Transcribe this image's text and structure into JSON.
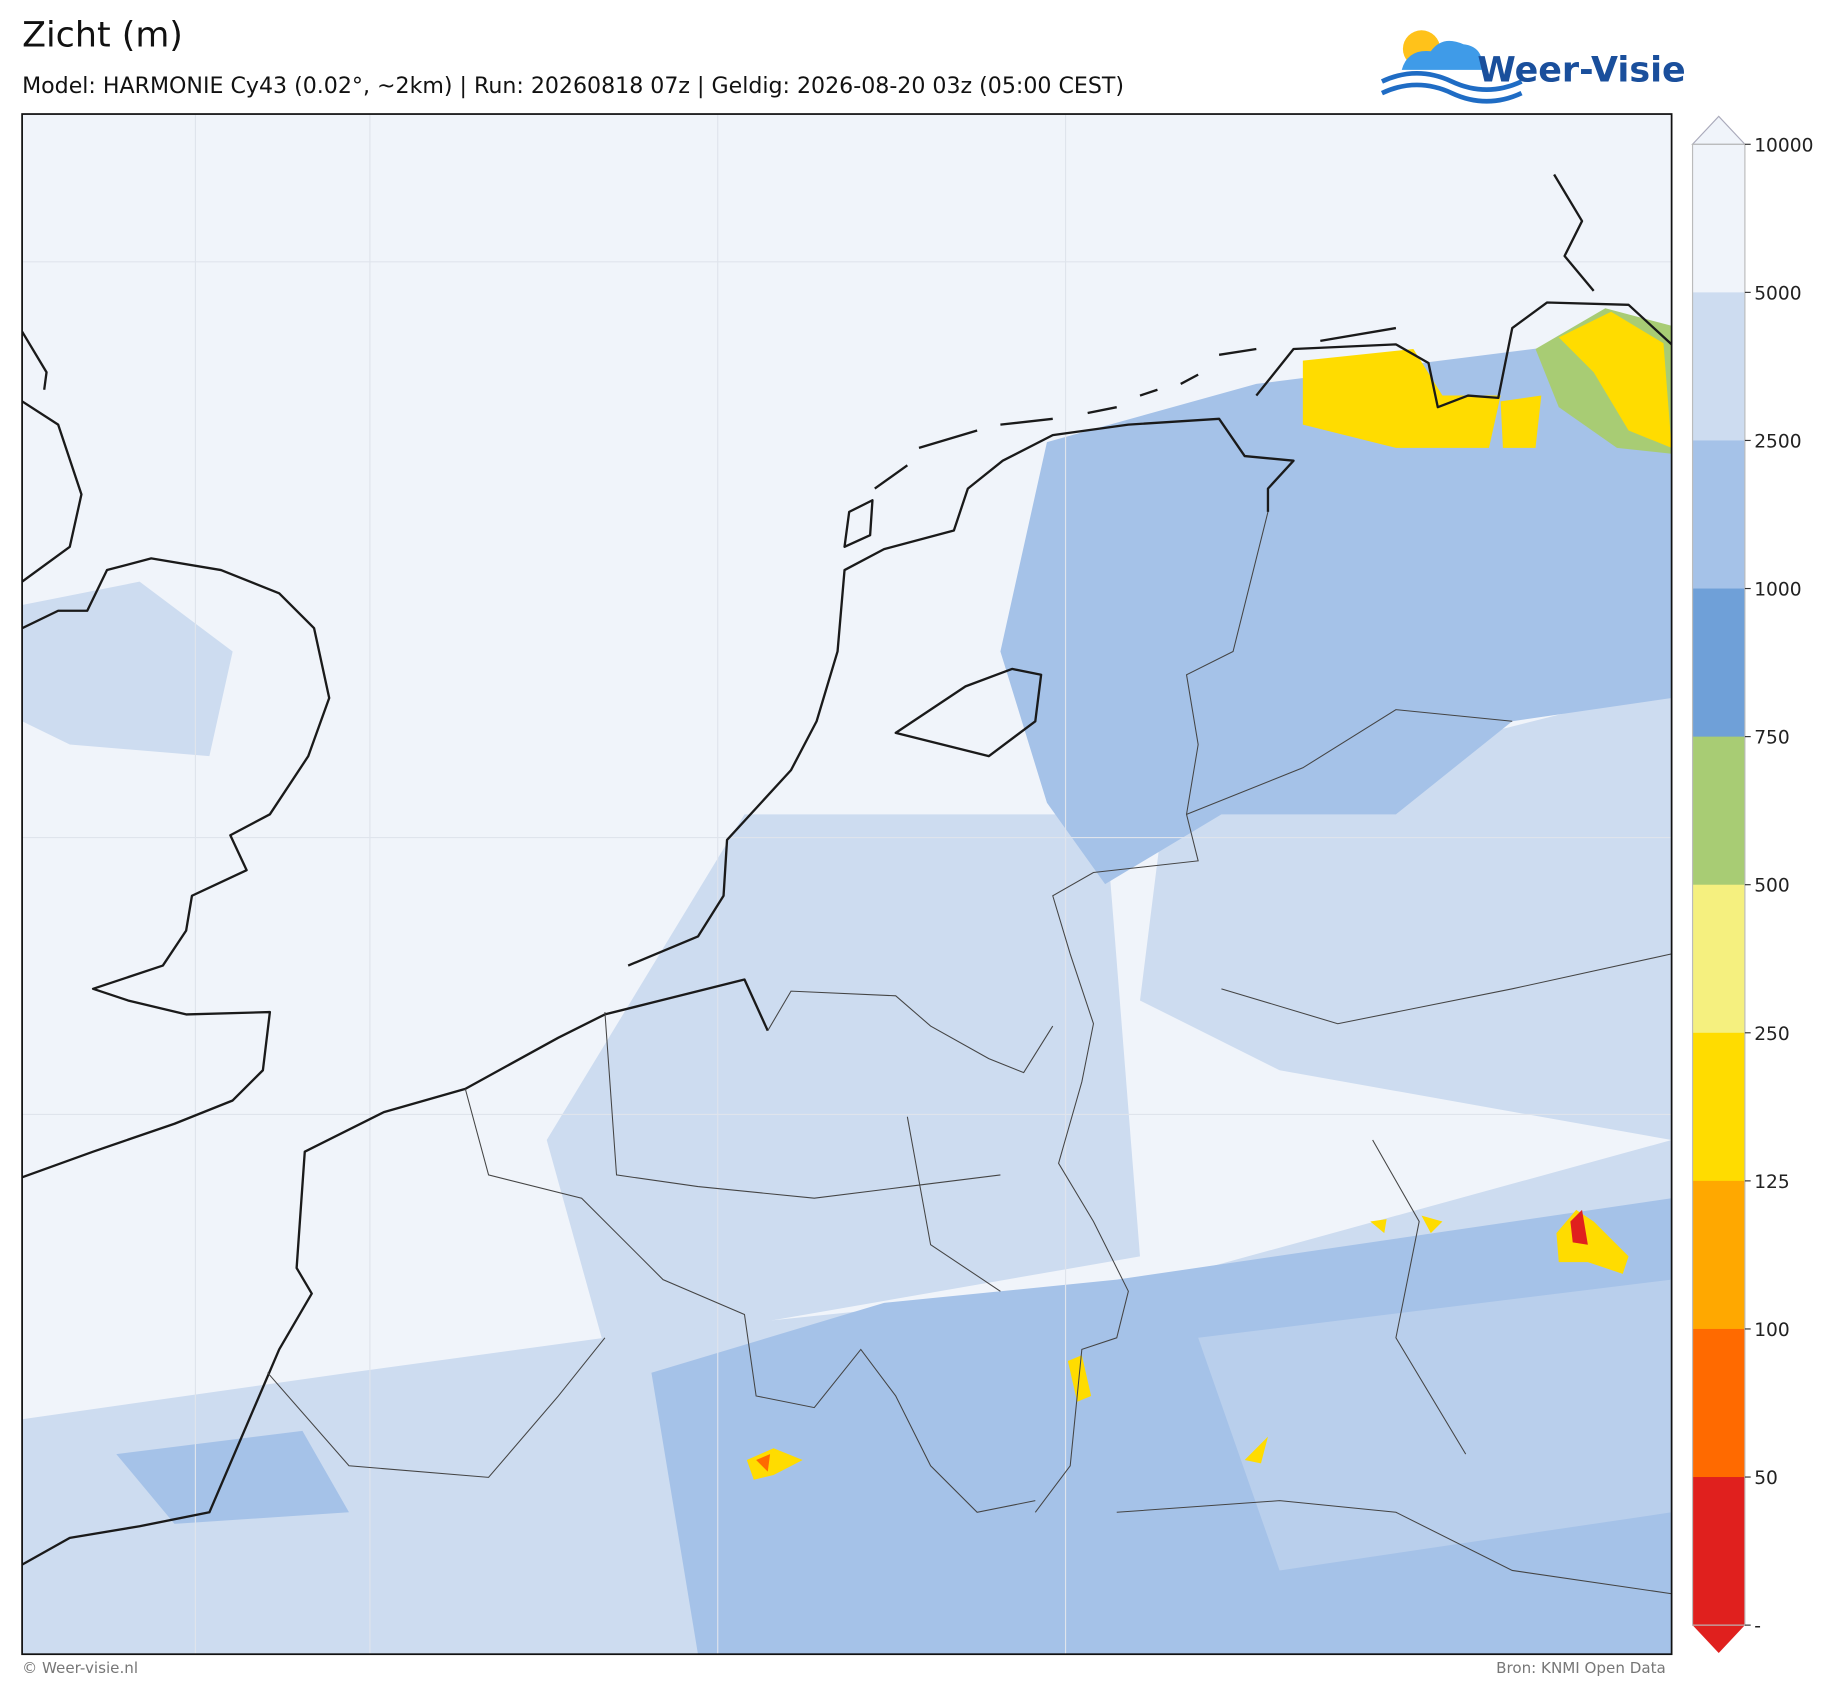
{
  "header": {
    "title": "Zicht (m)",
    "subtitle": "Model: HARMONIE Cy43 (0.02°, ~2km)  |  Run: 20260818 07z  |  Geldig: 2026-08-20 03z (05:00 CEST)",
    "logo": "Weer-Visie"
  },
  "legend": {
    "ticks": [
      10000,
      5000,
      2500,
      1000,
      750,
      500,
      250,
      125,
      100,
      50
    ],
    "bottom_label": "-",
    "colors": [
      "#f0f4fa",
      "#cddcf0",
      "#a5c2e8",
      "#6fa0d8",
      "#a8cc74",
      "#f5f07f",
      "#ffdc00",
      "#ffa800",
      "#ff6a00",
      "#e0201e"
    ]
  },
  "footer": {
    "left": "© Weer-visie.nl",
    "right": "Bron: KNMI Open Data"
  }
}
